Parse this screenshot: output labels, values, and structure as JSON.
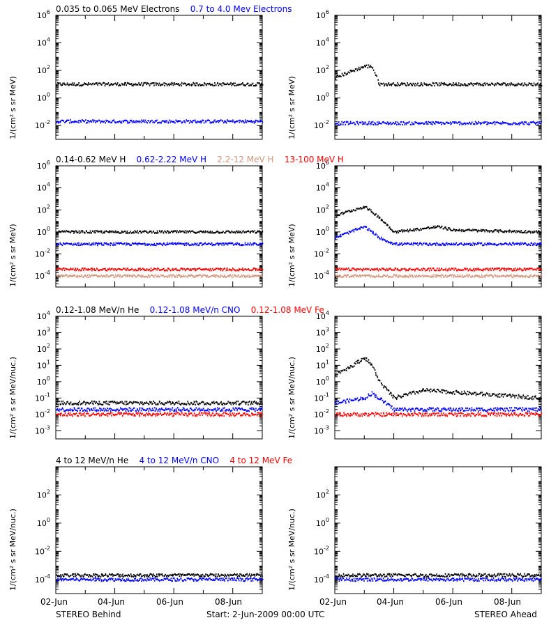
{
  "colors": {
    "black": "#000000",
    "blue": "#0000ff",
    "red": "#ff0000",
    "salmon": "#d2967d"
  },
  "rows": [
    {
      "ylabel": "1/(cm² s sr MeV)",
      "legend": [
        {
          "text": "0.035 to 0.065 MeV Electrons",
          "color": "#000000"
        },
        {
          "text": "0.7 to 4.0 Mev Electrons",
          "color": "#0000ff"
        }
      ],
      "ylim_exp": [
        -3,
        6
      ],
      "ticks": [
        {
          "exp": 6,
          "label": "10",
          "sup": "6"
        },
        {
          "exp": 4,
          "label": "10",
          "sup": "4"
        },
        {
          "exp": 2,
          "label": "10",
          "sup": "2"
        },
        {
          "exp": 0,
          "label": "10",
          "sup": "0"
        },
        {
          "exp": -2,
          "label": "10",
          "sup": "-2"
        }
      ]
    },
    {
      "ylabel": "1/(cm² s sr MeV)",
      "legend": [
        {
          "text": "0.14-0.62 MeV H",
          "color": "#000000"
        },
        {
          "text": "0.62-2.22 MeV H",
          "color": "#0000ff"
        },
        {
          "text": "2.2-12 MeV H",
          "color": "#d2967d"
        },
        {
          "text": "13-100 MeV H",
          "color": "#ff0000"
        }
      ],
      "ylim_exp": [
        -5,
        6
      ],
      "ticks": [
        {
          "exp": 6,
          "label": "10",
          "sup": "6"
        },
        {
          "exp": 4,
          "label": "10",
          "sup": "4"
        },
        {
          "exp": 2,
          "label": "10",
          "sup": "2"
        },
        {
          "exp": 0,
          "label": "10",
          "sup": "0"
        },
        {
          "exp": -2,
          "label": "10",
          "sup": "-2"
        },
        {
          "exp": -4,
          "label": "10",
          "sup": "-4"
        }
      ]
    },
    {
      "ylabel": "1/(cm² s sr MeV/nuc.)",
      "legend": [
        {
          "text": "0.12-1.08 MeV/n He",
          "color": "#000000"
        },
        {
          "text": "0.12-1.08 MeV/n CNO",
          "color": "#0000ff"
        },
        {
          "text": "0.12-1.08 MeV Fe",
          "color": "#ff0000"
        }
      ],
      "ylim_exp": [
        -3.5,
        4
      ],
      "ticks": [
        {
          "exp": 4,
          "label": "10",
          "sup": "4"
        },
        {
          "exp": 3,
          "label": "10",
          "sup": "3"
        },
        {
          "exp": 2,
          "label": "10",
          "sup": "2"
        },
        {
          "exp": 1,
          "label": "10",
          "sup": "1"
        },
        {
          "exp": 0,
          "label": "10",
          "sup": "0"
        },
        {
          "exp": -1,
          "label": "10",
          "sup": "-1"
        },
        {
          "exp": -2,
          "label": "10",
          "sup": "-2"
        },
        {
          "exp": -3,
          "label": "10",
          "sup": "-3"
        }
      ]
    },
    {
      "ylabel": "1/(cm² s sr MeV/nuc.)",
      "legend": [
        {
          "text": "4 to 12 MeV/n He",
          "color": "#000000"
        },
        {
          "text": "4 to 12 MeV/n CNO",
          "color": "#0000ff"
        },
        {
          "text": "4 to 12 MeV Fe",
          "color": "#ff0000"
        }
      ],
      "ylim_exp": [
        -5,
        4
      ],
      "ticks": [
        {
          "exp": 2,
          "label": "10",
          "sup": "2"
        },
        {
          "exp": 0,
          "label": "10",
          "sup": "0"
        },
        {
          "exp": -2,
          "label": "10",
          "sup": "-2"
        },
        {
          "exp": -4,
          "label": "10",
          "sup": "-4"
        }
      ]
    }
  ],
  "x_ticks": [
    "02-Jun",
    "04-Jun",
    "06-Jun",
    "08-Jun"
  ],
  "footer": {
    "left": "STEREO Behind",
    "center": "Start:  2-Jun-2009 00:00 UTC",
    "right": "STEREO Ahead"
  },
  "chart_data": [
    {
      "type": "scatter",
      "panel": "row1-left",
      "spacecraft": "STEREO Behind",
      "x_range": [
        "2009-06-02",
        "2009-06-09"
      ],
      "y_log": true,
      "ylim": [
        0.001,
        1000000
      ],
      "series": [
        {
          "name": "0.035 to 0.065 MeV Electrons",
          "color": "#000000",
          "x": [
            "2009-06-02",
            "2009-06-03",
            "2009-06-04",
            "2009-06-05",
            "2009-06-06",
            "2009-06-07",
            "2009-06-08",
            "2009-06-09"
          ],
          "y": [
            10,
            10,
            10,
            10,
            10,
            10,
            10,
            10
          ]
        },
        {
          "name": "0.7 to 4.0 Mev Electrons",
          "color": "#0000ff",
          "x": [
            "2009-06-02",
            "2009-06-03",
            "2009-06-04",
            "2009-06-05",
            "2009-06-06",
            "2009-06-07",
            "2009-06-08",
            "2009-06-09"
          ],
          "y": [
            0.02,
            0.02,
            0.02,
            0.02,
            0.02,
            0.02,
            0.02,
            0.02
          ]
        }
      ]
    },
    {
      "type": "scatter",
      "panel": "row1-right",
      "spacecraft": "STEREO Ahead",
      "x_range": [
        "2009-06-02",
        "2009-06-09"
      ],
      "y_log": true,
      "ylim": [
        0.001,
        1000000
      ],
      "series": [
        {
          "name": "0.035 to 0.065 MeV Electrons",
          "color": "#000000",
          "x": [
            "2009-06-02",
            "2009-06-02 12:00",
            "2009-06-03",
            "2009-06-03 06:00",
            "2009-06-03 12:00",
            "2009-06-04",
            "2009-06-05",
            "2009-06-06",
            "2009-06-07",
            "2009-06-08",
            "2009-06-09"
          ],
          "y": [
            30,
            80,
            200,
            200,
            10,
            10,
            10,
            10,
            10,
            10,
            10
          ]
        },
        {
          "name": "0.7 to 4.0 Mev Electrons",
          "color": "#0000ff",
          "x": [
            "2009-06-02",
            "2009-06-03",
            "2009-06-04",
            "2009-06-05",
            "2009-06-06",
            "2009-06-07",
            "2009-06-08",
            "2009-06-09"
          ],
          "y": [
            0.015,
            0.015,
            0.015,
            0.015,
            0.015,
            0.015,
            0.015,
            0.015
          ]
        }
      ]
    },
    {
      "type": "scatter",
      "panel": "row2-left",
      "spacecraft": "STEREO Behind",
      "x_range": [
        "2009-06-02",
        "2009-06-09"
      ],
      "y_log": true,
      "ylim": [
        1e-05,
        1000000
      ],
      "series": [
        {
          "name": "0.14-0.62 MeV H",
          "color": "#000000",
          "x": [
            "2009-06-02",
            "2009-06-09"
          ],
          "y": [
            1,
            1
          ]
        },
        {
          "name": "0.62-2.22 MeV H",
          "color": "#0000ff",
          "x": [
            "2009-06-02",
            "2009-06-09"
          ],
          "y": [
            0.08,
            0.08
          ]
        },
        {
          "name": "2.2-12 MeV H",
          "color": "#d2967d",
          "x": [
            "2009-06-02",
            "2009-06-09"
          ],
          "y": [
            0.0001,
            0.0001
          ]
        },
        {
          "name": "13-100 MeV H",
          "color": "#ff0000",
          "x": [
            "2009-06-02",
            "2009-06-09"
          ],
          "y": [
            0.0004,
            0.0004
          ]
        }
      ]
    },
    {
      "type": "scatter",
      "panel": "row2-right",
      "spacecraft": "STEREO Ahead",
      "x_range": [
        "2009-06-02",
        "2009-06-09"
      ],
      "y_log": true,
      "ylim": [
        1e-05,
        1000000
      ],
      "series": [
        {
          "name": "0.14-0.62 MeV H",
          "color": "#000000",
          "x": [
            "2009-06-02",
            "2009-06-02 12:00",
            "2009-06-03",
            "2009-06-03 12:00",
            "2009-06-04",
            "2009-06-05",
            "2009-06-05 12:00",
            "2009-06-06",
            "2009-06-07",
            "2009-06-09"
          ],
          "y": [
            30,
            80,
            200,
            20,
            1,
            2,
            3,
            1.5,
            1.3,
            1
          ]
        },
        {
          "name": "0.62-2.22 MeV H",
          "color": "#0000ff",
          "x": [
            "2009-06-02",
            "2009-06-02 12:00",
            "2009-06-03",
            "2009-06-03 12:00",
            "2009-06-04",
            "2009-06-09"
          ],
          "y": [
            0.3,
            1,
            3,
            0.3,
            0.08,
            0.08
          ]
        },
        {
          "name": "2.2-12 MeV H",
          "color": "#d2967d",
          "x": [
            "2009-06-02",
            "2009-06-09"
          ],
          "y": [
            0.0001,
            0.0001
          ]
        },
        {
          "name": "13-100 MeV H",
          "color": "#ff0000",
          "x": [
            "2009-06-02",
            "2009-06-09"
          ],
          "y": [
            0.0004,
            0.0004
          ]
        }
      ]
    },
    {
      "type": "scatter",
      "panel": "row3-left",
      "spacecraft": "STEREO Behind",
      "x_range": [
        "2009-06-02",
        "2009-06-09"
      ],
      "y_log": true,
      "ylim": [
        0.0003,
        10000
      ],
      "series": [
        {
          "name": "0.12-1.08 MeV/n He",
          "color": "#000000",
          "x": [
            "2009-06-02",
            "2009-06-09"
          ],
          "y": [
            0.05,
            0.05
          ]
        },
        {
          "name": "0.12-1.08 MeV/n CNO",
          "color": "#0000ff",
          "x": [
            "2009-06-02",
            "2009-06-09"
          ],
          "y": [
            0.02,
            0.02
          ]
        },
        {
          "name": "0.12-1.08 MeV Fe",
          "color": "#ff0000",
          "x": [
            "2009-06-02",
            "2009-06-09"
          ],
          "y": [
            0.01,
            0.01
          ]
        }
      ]
    },
    {
      "type": "scatter",
      "panel": "row3-right",
      "spacecraft": "STEREO Ahead",
      "x_range": [
        "2009-06-02",
        "2009-06-09"
      ],
      "y_log": true,
      "ylim": [
        0.0003,
        10000
      ],
      "series": [
        {
          "name": "0.12-1.08 MeV/n He",
          "color": "#000000",
          "x": [
            "2009-06-02",
            "2009-06-02 12:00",
            "2009-06-03",
            "2009-06-03 06:00",
            "2009-06-03 12:00",
            "2009-06-04",
            "2009-06-05",
            "2009-06-09"
          ],
          "y": [
            3,
            8,
            30,
            10,
            1,
            0.1,
            0.3,
            0.1
          ]
        },
        {
          "name": "0.12-1.08 MeV/n CNO",
          "color": "#0000ff",
          "x": [
            "2009-06-02",
            "2009-06-03",
            "2009-06-03 06:00",
            "2009-06-04",
            "2009-06-09"
          ],
          "y": [
            0.05,
            0.1,
            0.2,
            0.02,
            0.02
          ]
        },
        {
          "name": "0.12-1.08 MeV Fe",
          "color": "#ff0000",
          "x": [
            "2009-06-02",
            "2009-06-09"
          ],
          "y": [
            0.01,
            0.01
          ]
        }
      ]
    },
    {
      "type": "scatter",
      "panel": "row4-left",
      "spacecraft": "STEREO Behind",
      "x_range": [
        "2009-06-02",
        "2009-06-09"
      ],
      "y_log": true,
      "ylim": [
        1e-05,
        10000
      ],
      "series": [
        {
          "name": "4 to 12 MeV/n He",
          "color": "#000000",
          "x": [
            "2009-06-02",
            "2009-06-09"
          ],
          "y": [
            0.0002,
            0.0002
          ]
        },
        {
          "name": "4 to 12 MeV/n CNO",
          "color": "#0000ff",
          "x": [
            "2009-06-02",
            "2009-06-09"
          ],
          "y": [
            0.0001,
            0.0001
          ]
        }
      ]
    },
    {
      "type": "scatter",
      "panel": "row4-right",
      "spacecraft": "STEREO Ahead",
      "x_range": [
        "2009-06-02",
        "2009-06-09"
      ],
      "y_log": true,
      "ylim": [
        1e-05,
        10000
      ],
      "series": [
        {
          "name": "4 to 12 MeV/n He",
          "color": "#000000",
          "x": [
            "2009-06-02",
            "2009-06-09"
          ],
          "y": [
            0.0002,
            0.0002
          ]
        },
        {
          "name": "4 to 12 MeV/n CNO",
          "color": "#0000ff",
          "x": [
            "2009-06-02",
            "2009-06-09"
          ],
          "y": [
            0.0001,
            0.0001
          ]
        }
      ]
    }
  ]
}
